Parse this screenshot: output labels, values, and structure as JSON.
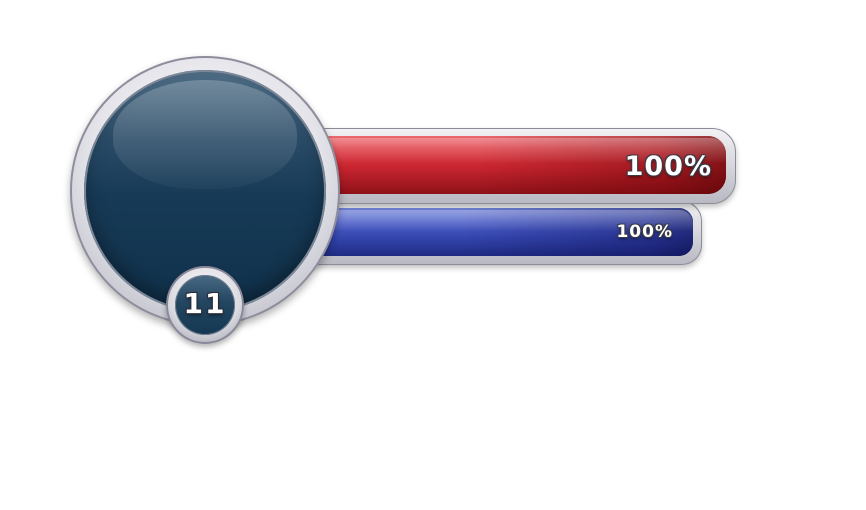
{
  "hud": {
    "level": "11",
    "health": {
      "label": "100%",
      "fill_fraction": 1.0,
      "color": "#d0303a"
    },
    "mana": {
      "label": "100%",
      "fill_fraction": 1.0,
      "color": "#4254c0"
    },
    "portrait": {
      "color": "#173a56"
    },
    "frame_color": "#d8d8e0"
  }
}
